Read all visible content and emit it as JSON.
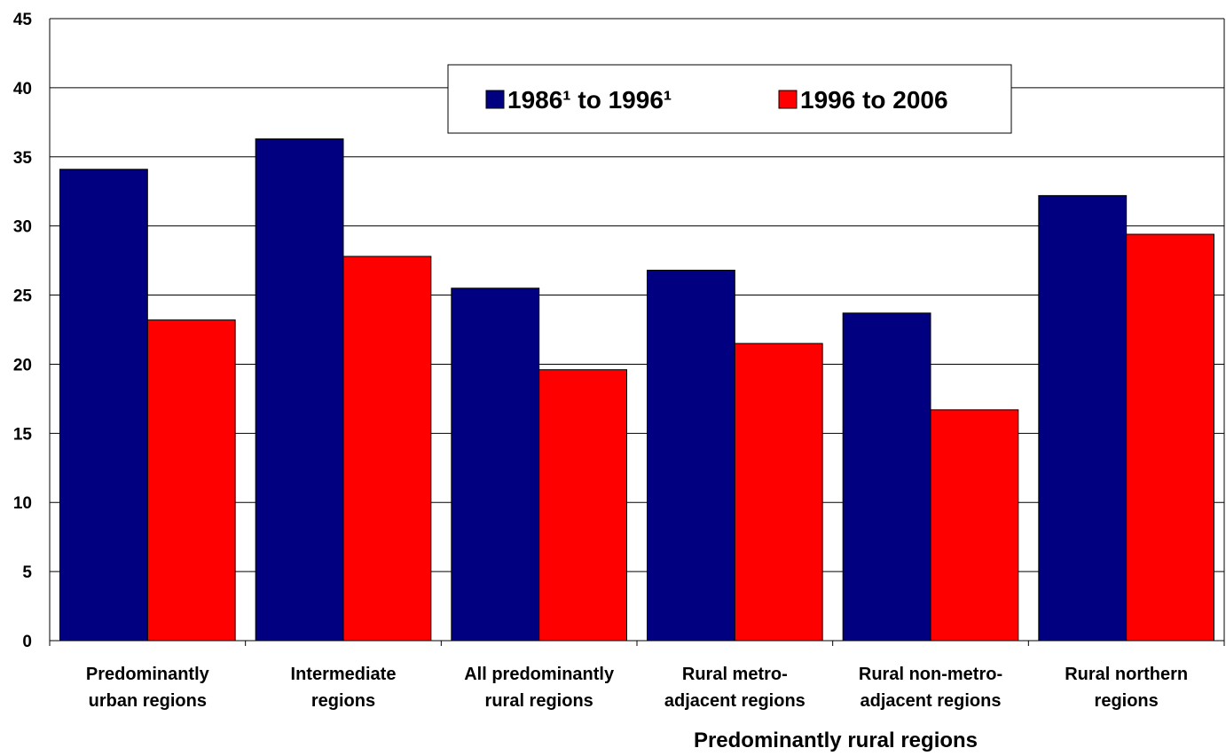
{
  "chart_data": {
    "type": "bar",
    "categories": [
      [
        "Predominantly",
        "urban regions"
      ],
      [
        "Intermediate",
        "regions"
      ],
      [
        "All predominantly",
        "rural regions"
      ],
      [
        "Rural metro-",
        "adjacent regions"
      ],
      [
        "Rural non-metro-",
        "adjacent regions"
      ],
      [
        "Rural northern",
        "regions"
      ]
    ],
    "series": [
      {
        "name": "1986¹ to 1996¹",
        "color": "#000080",
        "values": [
          34.1,
          36.3,
          25.5,
          26.8,
          23.7,
          32.2
        ]
      },
      {
        "name": "1996 to 2006",
        "color": "#ff0000",
        "values": [
          23.2,
          27.8,
          19.6,
          21.5,
          16.7,
          29.4
        ]
      }
    ],
    "ylim": [
      0,
      45
    ],
    "yticks": [
      0,
      5,
      10,
      15,
      20,
      25,
      30,
      35,
      40,
      45
    ],
    "grid": true,
    "legend_position": "top-center",
    "group_label": "Predominantly rural regions",
    "xlabel": "",
    "ylabel": "",
    "title": ""
  }
}
